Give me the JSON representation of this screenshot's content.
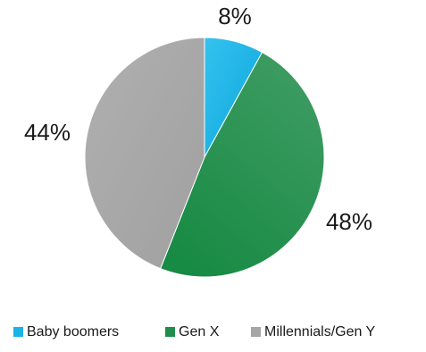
{
  "chart_data": {
    "type": "pie",
    "categories": [
      "Baby boomers",
      "Gen X",
      "Millennials/Gen Y"
    ],
    "values": [
      8,
      48,
      44
    ],
    "labels": [
      "8%",
      "48%",
      "44%"
    ],
    "colors": [
      "#19b3e6",
      "#1e8e4a",
      "#a6a6a6"
    ],
    "legend_position": "bottom",
    "start_angle": "top",
    "direction": "clockwise"
  }
}
